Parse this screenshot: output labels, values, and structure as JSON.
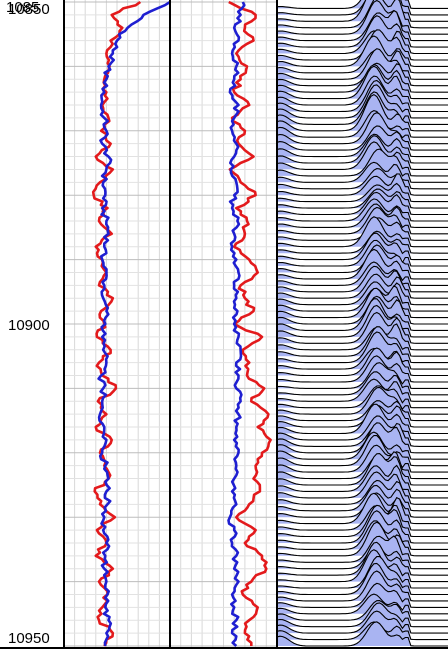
{
  "chart_data": {
    "type": "line",
    "depth_axis": {
      "ticks": [
        10850,
        10900,
        10950
      ],
      "tick_labels": [
        "10850",
        "10900",
        "10950"
      ],
      "range": [
        10850,
        10950
      ],
      "overlapping_top_label": "1085"
    },
    "grid": true,
    "tracks": [
      {
        "name": "",
        "series": [
          {
            "name": "",
            "color": "#e31a1c",
            "depth": [
              10850,
              10852,
              10854,
              10856,
              10858,
              10860,
              10862,
              10864,
              10866,
              10868,
              10870,
              10872,
              10874,
              10876,
              10878,
              10880,
              10882,
              10884,
              10886,
              10888,
              10890,
              10892,
              10894,
              10896,
              10898,
              10900,
              10902,
              10904,
              10906,
              10908,
              10910,
              10912,
              10914,
              10916,
              10918,
              10920,
              10922,
              10924,
              10926,
              10928,
              10930,
              10932,
              10934,
              10936,
              10938,
              10940,
              10942,
              10944,
              10946,
              10948,
              10950
            ],
            "values": [
              0.72,
              0.45,
              0.55,
              0.44,
              0.4,
              0.43,
              0.38,
              0.4,
              0.36,
              0.42,
              0.35,
              0.44,
              0.3,
              0.46,
              0.34,
              0.28,
              0.41,
              0.33,
              0.45,
              0.3,
              0.36,
              0.4,
              0.33,
              0.46,
              0.35,
              0.38,
              0.31,
              0.44,
              0.33,
              0.36,
              0.49,
              0.32,
              0.4,
              0.3,
              0.45,
              0.34,
              0.38,
              0.42,
              0.29,
              0.34,
              0.48,
              0.31,
              0.4,
              0.3,
              0.46,
              0.33,
              0.41,
              0.36,
              0.33,
              0.46,
              0.38
            ]
          },
          {
            "name": "",
            "color": "#1f1fd1",
            "depth": [
              10850,
              10852,
              10854,
              10856,
              10858,
              10860,
              10862,
              10864,
              10866,
              10868,
              10870,
              10872,
              10874,
              10876,
              10878,
              10880,
              10882,
              10884,
              10886,
              10888,
              10890,
              10892,
              10894,
              10896,
              10898,
              10900,
              10902,
              10904,
              10906,
              10908,
              10910,
              10912,
              10914,
              10916,
              10918,
              10920,
              10922,
              10924,
              10926,
              10928,
              10930,
              10932,
              10934,
              10936,
              10938,
              10940,
              10942,
              10944,
              10946,
              10948,
              10950
            ],
            "values": [
              1.0,
              0.75,
              0.6,
              0.5,
              0.46,
              0.42,
              0.4,
              0.38,
              0.35,
              0.38,
              0.4,
              0.36,
              0.42,
              0.4,
              0.37,
              0.39,
              0.36,
              0.4,
              0.42,
              0.38,
              0.36,
              0.4,
              0.38,
              0.37,
              0.4,
              0.39,
              0.36,
              0.37,
              0.4,
              0.35,
              0.37,
              0.36,
              0.34,
              0.38,
              0.4,
              0.36,
              0.39,
              0.42,
              0.4,
              0.41,
              0.38,
              0.37,
              0.4,
              0.39,
              0.38,
              0.4,
              0.41,
              0.39,
              0.42,
              0.4,
              0.39
            ]
          }
        ]
      },
      {
        "name": "",
        "series": [
          {
            "name": "",
            "color": "#e31a1c",
            "depth": [
              10850,
              10852,
              10854,
              10856,
              10858,
              10860,
              10862,
              10864,
              10866,
              10868,
              10870,
              10872,
              10874,
              10876,
              10878,
              10880,
              10882,
              10884,
              10886,
              10888,
              10890,
              10892,
              10894,
              10896,
              10898,
              10900,
              10902,
              10904,
              10906,
              10908,
              10910,
              10912,
              10914,
              10916,
              10918,
              10920,
              10922,
              10924,
              10926,
              10928,
              10930,
              10932,
              10934,
              10936,
              10938,
              10940,
              10942,
              10944,
              10946,
              10948,
              10950
            ],
            "values": [
              0.55,
              0.8,
              0.7,
              0.78,
              0.62,
              0.72,
              0.66,
              0.6,
              0.74,
              0.58,
              0.7,
              0.64,
              0.78,
              0.56,
              0.66,
              0.8,
              0.62,
              0.72,
              0.7,
              0.6,
              0.74,
              0.82,
              0.66,
              0.7,
              0.78,
              0.6,
              0.86,
              0.68,
              0.74,
              0.72,
              0.88,
              0.76,
              0.92,
              0.82,
              0.94,
              0.86,
              0.8,
              0.78,
              0.84,
              0.74,
              0.62,
              0.8,
              0.7,
              0.86,
              0.9,
              0.76,
              0.68,
              0.82,
              0.74,
              0.7,
              0.76
            ]
          },
          {
            "name": "",
            "color": "#1f1fd1",
            "depth": [
              10850,
              10852,
              10854,
              10856,
              10858,
              10860,
              10862,
              10864,
              10866,
              10868,
              10870,
              10872,
              10874,
              10876,
              10878,
              10880,
              10882,
              10884,
              10886,
              10888,
              10890,
              10892,
              10894,
              10896,
              10898,
              10900,
              10902,
              10904,
              10906,
              10908,
              10910,
              10912,
              10914,
              10916,
              10918,
              10920,
              10922,
              10924,
              10926,
              10928,
              10930,
              10932,
              10934,
              10936,
              10938,
              10940,
              10942,
              10944,
              10946,
              10948,
              10950
            ],
            "values": [
              0.68,
              0.66,
              0.6,
              0.64,
              0.58,
              0.62,
              0.6,
              0.56,
              0.64,
              0.6,
              0.58,
              0.62,
              0.6,
              0.57,
              0.62,
              0.6,
              0.58,
              0.63,
              0.6,
              0.58,
              0.62,
              0.64,
              0.6,
              0.62,
              0.63,
              0.6,
              0.64,
              0.66,
              0.62,
              0.64,
              0.62,
              0.66,
              0.64,
              0.62,
              0.6,
              0.64,
              0.62,
              0.6,
              0.58,
              0.62,
              0.56,
              0.6,
              0.58,
              0.62,
              0.6,
              0.64,
              0.58,
              0.6,
              0.62,
              0.58,
              0.62
            ]
          }
        ]
      },
      {
        "name": "",
        "type": "wiggle",
        "fill_color": "#a9b4f2",
        "trace_count": 100,
        "profile_bins": [
          0.0,
          0.1,
          0.2,
          0.3,
          0.4,
          0.5,
          0.6,
          0.7,
          0.8,
          0.9,
          1.0
        ],
        "peak_positions": [
          0.58,
          0.7
        ],
        "depth": [
          10850,
          10860,
          10870,
          10880,
          10890,
          10900,
          10910,
          10920,
          10930,
          10940,
          10950
        ],
        "primary_peak_amplitude": [
          1.0,
          0.75,
          0.9,
          0.6,
          0.8,
          0.85,
          0.7,
          0.75,
          0.9,
          0.8,
          0.6
        ],
        "secondary_peak_amplitude": [
          0.9,
          0.55,
          0.4,
          0.5,
          0.35,
          0.6,
          0.45,
          0.5,
          0.7,
          0.4,
          0.3
        ],
        "left_shoulder_amplitude": [
          0.05,
          0.15,
          0.3,
          0.1,
          0.1,
          0.2,
          0.05,
          0.25,
          0.1,
          0.05,
          0.3
        ]
      }
    ]
  }
}
